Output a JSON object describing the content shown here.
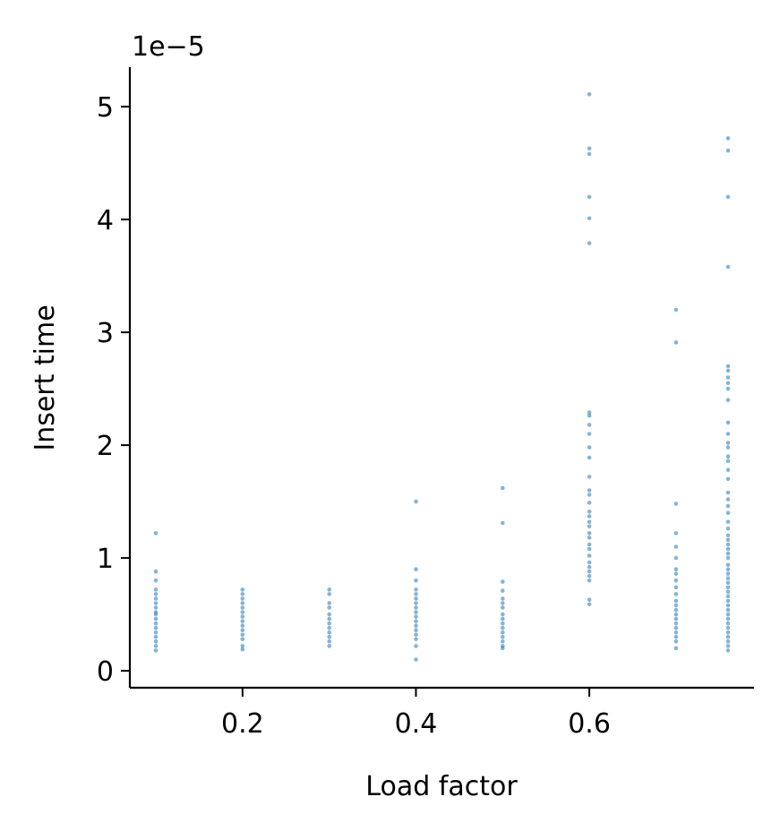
{
  "chart_data": {
    "type": "scatter",
    "xlabel": "Load factor",
    "ylabel": "Insert time",
    "y_offset_label": "1e−5",
    "xlim": [
      0.07,
      0.79
    ],
    "ylim": [
      -0.15,
      5.35
    ],
    "xticks": [
      0.2,
      0.4,
      0.6
    ],
    "xtick_labels": [
      "0.2",
      "0.4",
      "0.6"
    ],
    "yticks": [
      0,
      1,
      2,
      3,
      4,
      5
    ],
    "ytick_labels": [
      "0",
      "1",
      "2",
      "3",
      "4",
      "5"
    ],
    "grid": false,
    "marker_color": "#1f77b4",
    "marker_alpha": 0.55,
    "y_units": "1e-5",
    "series": [
      {
        "points": [
          {
            "x": 0.1,
            "y": 1.22
          },
          {
            "x": 0.1,
            "y": 0.88
          },
          {
            "x": 0.1,
            "y": 0.8
          },
          {
            "x": 0.1,
            "y": 0.72
          },
          {
            "x": 0.1,
            "y": 0.68
          },
          {
            "x": 0.1,
            "y": 0.64
          },
          {
            "x": 0.1,
            "y": 0.6
          },
          {
            "x": 0.1,
            "y": 0.56
          },
          {
            "x": 0.1,
            "y": 0.52
          },
          {
            "x": 0.1,
            "y": 0.5
          },
          {
            "x": 0.1,
            "y": 0.46
          },
          {
            "x": 0.1,
            "y": 0.42
          },
          {
            "x": 0.1,
            "y": 0.38
          },
          {
            "x": 0.1,
            "y": 0.34
          },
          {
            "x": 0.1,
            "y": 0.3
          },
          {
            "x": 0.1,
            "y": 0.26
          },
          {
            "x": 0.1,
            "y": 0.22
          },
          {
            "x": 0.1,
            "y": 0.18
          },
          {
            "x": 0.2,
            "y": 0.72
          },
          {
            "x": 0.2,
            "y": 0.68
          },
          {
            "x": 0.2,
            "y": 0.64
          },
          {
            "x": 0.2,
            "y": 0.6
          },
          {
            "x": 0.2,
            "y": 0.56
          },
          {
            "x": 0.2,
            "y": 0.52
          },
          {
            "x": 0.2,
            "y": 0.48
          },
          {
            "x": 0.2,
            "y": 0.44
          },
          {
            "x": 0.2,
            "y": 0.4
          },
          {
            "x": 0.2,
            "y": 0.36
          },
          {
            "x": 0.2,
            "y": 0.32
          },
          {
            "x": 0.2,
            "y": 0.28
          },
          {
            "x": 0.2,
            "y": 0.22
          },
          {
            "x": 0.2,
            "y": 0.19
          },
          {
            "x": 0.3,
            "y": 0.72
          },
          {
            "x": 0.3,
            "y": 0.68
          },
          {
            "x": 0.3,
            "y": 0.6
          },
          {
            "x": 0.3,
            "y": 0.56
          },
          {
            "x": 0.3,
            "y": 0.5
          },
          {
            "x": 0.3,
            "y": 0.46
          },
          {
            "x": 0.3,
            "y": 0.42
          },
          {
            "x": 0.3,
            "y": 0.38
          },
          {
            "x": 0.3,
            "y": 0.34
          },
          {
            "x": 0.3,
            "y": 0.3
          },
          {
            "x": 0.3,
            "y": 0.26
          },
          {
            "x": 0.3,
            "y": 0.22
          },
          {
            "x": 0.4,
            "y": 1.5
          },
          {
            "x": 0.4,
            "y": 0.9
          },
          {
            "x": 0.4,
            "y": 0.8
          },
          {
            "x": 0.4,
            "y": 0.72
          },
          {
            "x": 0.4,
            "y": 0.68
          },
          {
            "x": 0.4,
            "y": 0.64
          },
          {
            "x": 0.4,
            "y": 0.6
          },
          {
            "x": 0.4,
            "y": 0.56
          },
          {
            "x": 0.4,
            "y": 0.52
          },
          {
            "x": 0.4,
            "y": 0.48
          },
          {
            "x": 0.4,
            "y": 0.44
          },
          {
            "x": 0.4,
            "y": 0.4
          },
          {
            "x": 0.4,
            "y": 0.36
          },
          {
            "x": 0.4,
            "y": 0.32
          },
          {
            "x": 0.4,
            "y": 0.28
          },
          {
            "x": 0.4,
            "y": 0.22
          },
          {
            "x": 0.4,
            "y": 0.1
          },
          {
            "x": 0.5,
            "y": 1.62
          },
          {
            "x": 0.5,
            "y": 1.31
          },
          {
            "x": 0.5,
            "y": 0.79
          },
          {
            "x": 0.5,
            "y": 0.71
          },
          {
            "x": 0.5,
            "y": 0.64
          },
          {
            "x": 0.5,
            "y": 0.6
          },
          {
            "x": 0.5,
            "y": 0.56
          },
          {
            "x": 0.5,
            "y": 0.5
          },
          {
            "x": 0.5,
            "y": 0.46
          },
          {
            "x": 0.5,
            "y": 0.42
          },
          {
            "x": 0.5,
            "y": 0.38
          },
          {
            "x": 0.5,
            "y": 0.34
          },
          {
            "x": 0.5,
            "y": 0.3
          },
          {
            "x": 0.5,
            "y": 0.26
          },
          {
            "x": 0.5,
            "y": 0.22
          },
          {
            "x": 0.5,
            "y": 0.2
          },
          {
            "x": 0.6,
            "y": 5.11
          },
          {
            "x": 0.6,
            "y": 4.63
          },
          {
            "x": 0.6,
            "y": 4.58
          },
          {
            "x": 0.6,
            "y": 4.2
          },
          {
            "x": 0.6,
            "y": 4.01
          },
          {
            "x": 0.6,
            "y": 3.79
          },
          {
            "x": 0.6,
            "y": 2.29
          },
          {
            "x": 0.6,
            "y": 2.26
          },
          {
            "x": 0.6,
            "y": 2.18
          },
          {
            "x": 0.6,
            "y": 2.1
          },
          {
            "x": 0.6,
            "y": 1.98
          },
          {
            "x": 0.6,
            "y": 1.89
          },
          {
            "x": 0.6,
            "y": 1.72
          },
          {
            "x": 0.6,
            "y": 1.6
          },
          {
            "x": 0.6,
            "y": 1.56
          },
          {
            "x": 0.6,
            "y": 1.49
          },
          {
            "x": 0.6,
            "y": 1.41
          },
          {
            "x": 0.6,
            "y": 1.37
          },
          {
            "x": 0.6,
            "y": 1.32
          },
          {
            "x": 0.6,
            "y": 1.28
          },
          {
            "x": 0.6,
            "y": 1.22
          },
          {
            "x": 0.6,
            "y": 1.18
          },
          {
            "x": 0.6,
            "y": 1.12
          },
          {
            "x": 0.6,
            "y": 1.08
          },
          {
            "x": 0.6,
            "y": 1.02
          },
          {
            "x": 0.6,
            "y": 0.96
          },
          {
            "x": 0.6,
            "y": 0.92
          },
          {
            "x": 0.6,
            "y": 0.88
          },
          {
            "x": 0.6,
            "y": 0.84
          },
          {
            "x": 0.6,
            "y": 0.8
          },
          {
            "x": 0.6,
            "y": 0.63
          },
          {
            "x": 0.6,
            "y": 0.59
          },
          {
            "x": 0.7,
            "y": 3.2
          },
          {
            "x": 0.7,
            "y": 2.91
          },
          {
            "x": 0.7,
            "y": 1.48
          },
          {
            "x": 0.7,
            "y": 1.22
          },
          {
            "x": 0.7,
            "y": 1.1
          },
          {
            "x": 0.7,
            "y": 1.0
          },
          {
            "x": 0.7,
            "y": 0.9
          },
          {
            "x": 0.7,
            "y": 0.86
          },
          {
            "x": 0.7,
            "y": 0.8
          },
          {
            "x": 0.7,
            "y": 0.74
          },
          {
            "x": 0.7,
            "y": 0.68
          },
          {
            "x": 0.7,
            "y": 0.62
          },
          {
            "x": 0.7,
            "y": 0.58
          },
          {
            "x": 0.7,
            "y": 0.54
          },
          {
            "x": 0.7,
            "y": 0.5
          },
          {
            "x": 0.7,
            "y": 0.46
          },
          {
            "x": 0.7,
            "y": 0.42
          },
          {
            "x": 0.7,
            "y": 0.38
          },
          {
            "x": 0.7,
            "y": 0.34
          },
          {
            "x": 0.7,
            "y": 0.3
          },
          {
            "x": 0.7,
            "y": 0.26
          },
          {
            "x": 0.7,
            "y": 0.2
          },
          {
            "x": 0.76,
            "y": 4.72
          },
          {
            "x": 0.76,
            "y": 4.61
          },
          {
            "x": 0.76,
            "y": 4.2
          },
          {
            "x": 0.76,
            "y": 3.58
          },
          {
            "x": 0.76,
            "y": 2.7
          },
          {
            "x": 0.76,
            "y": 2.66
          },
          {
            "x": 0.76,
            "y": 2.6
          },
          {
            "x": 0.76,
            "y": 2.55
          },
          {
            "x": 0.76,
            "y": 2.5
          },
          {
            "x": 0.76,
            "y": 2.4
          },
          {
            "x": 0.76,
            "y": 2.2
          },
          {
            "x": 0.76,
            "y": 2.1
          },
          {
            "x": 0.76,
            "y": 2.02
          },
          {
            "x": 0.76,
            "y": 1.98
          },
          {
            "x": 0.76,
            "y": 1.9
          },
          {
            "x": 0.76,
            "y": 1.86
          },
          {
            "x": 0.76,
            "y": 1.78
          },
          {
            "x": 0.76,
            "y": 1.7
          },
          {
            "x": 0.76,
            "y": 1.58
          },
          {
            "x": 0.76,
            "y": 1.52
          },
          {
            "x": 0.76,
            "y": 1.46
          },
          {
            "x": 0.76,
            "y": 1.4
          },
          {
            "x": 0.76,
            "y": 1.32
          },
          {
            "x": 0.76,
            "y": 1.26
          },
          {
            "x": 0.76,
            "y": 1.2
          },
          {
            "x": 0.76,
            "y": 1.16
          },
          {
            "x": 0.76,
            "y": 1.12
          },
          {
            "x": 0.76,
            "y": 1.08
          },
          {
            "x": 0.76,
            "y": 1.04
          },
          {
            "x": 0.76,
            "y": 1.0
          },
          {
            "x": 0.76,
            "y": 0.94
          },
          {
            "x": 0.76,
            "y": 0.9
          },
          {
            "x": 0.76,
            "y": 0.86
          },
          {
            "x": 0.76,
            "y": 0.82
          },
          {
            "x": 0.76,
            "y": 0.78
          },
          {
            "x": 0.76,
            "y": 0.74
          },
          {
            "x": 0.76,
            "y": 0.7
          },
          {
            "x": 0.76,
            "y": 0.66
          },
          {
            "x": 0.76,
            "y": 0.62
          },
          {
            "x": 0.76,
            "y": 0.58
          },
          {
            "x": 0.76,
            "y": 0.54
          },
          {
            "x": 0.76,
            "y": 0.5
          },
          {
            "x": 0.76,
            "y": 0.46
          },
          {
            "x": 0.76,
            "y": 0.42
          },
          {
            "x": 0.76,
            "y": 0.38
          },
          {
            "x": 0.76,
            "y": 0.34
          },
          {
            "x": 0.76,
            "y": 0.3
          },
          {
            "x": 0.76,
            "y": 0.26
          },
          {
            "x": 0.76,
            "y": 0.22
          },
          {
            "x": 0.76,
            "y": 0.18
          }
        ]
      }
    ]
  }
}
